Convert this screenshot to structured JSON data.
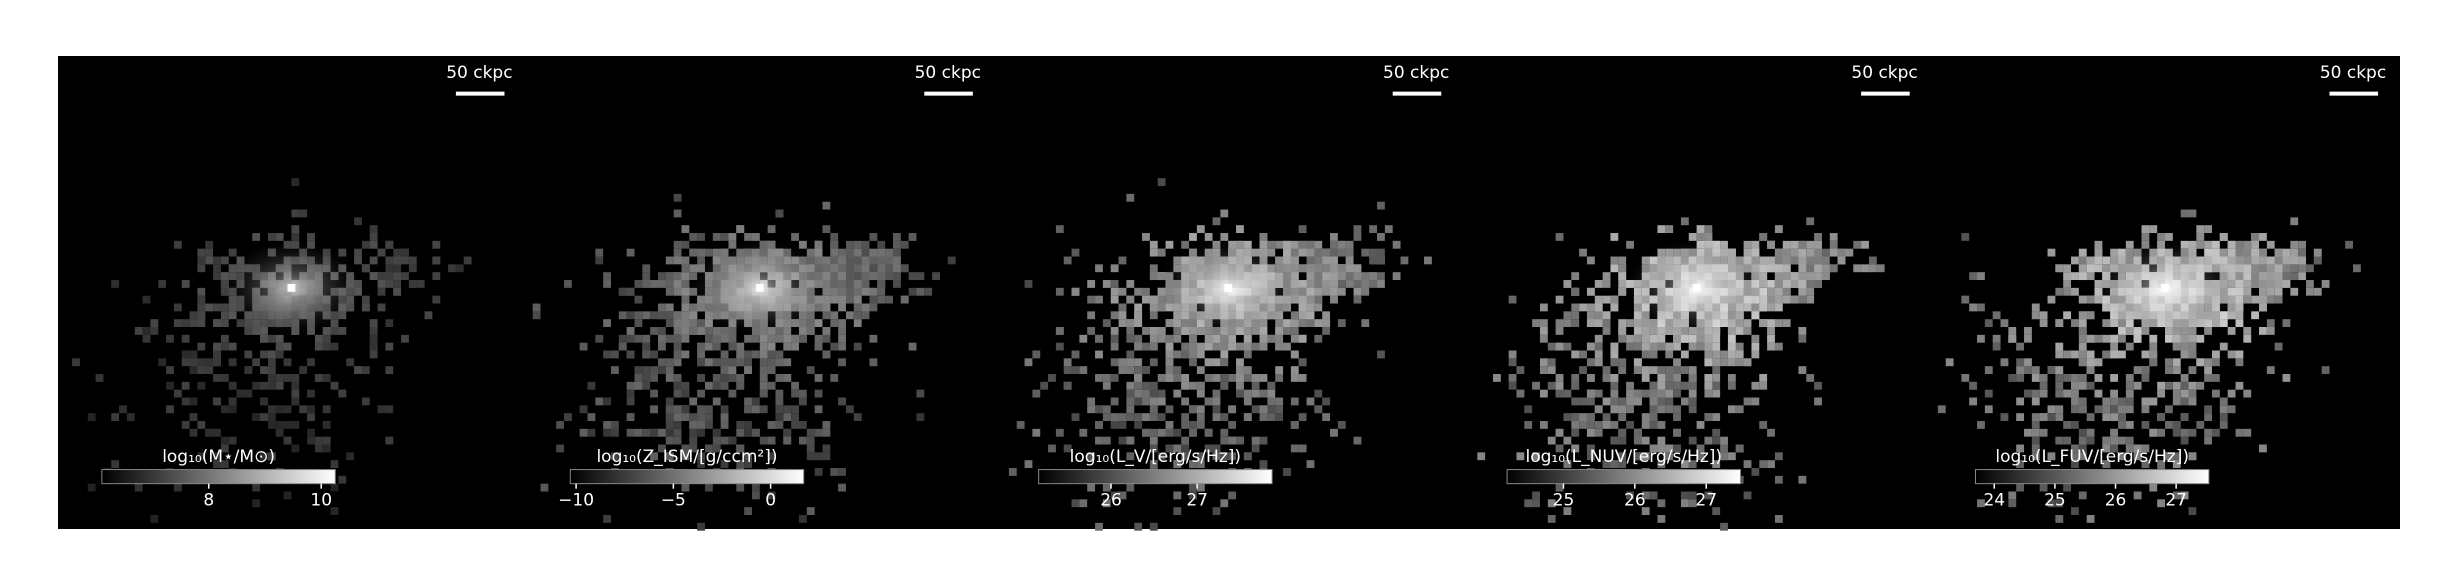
{
  "panels": [
    {
      "scale_label": "50 ckpc",
      "colorbar": {
        "label": "log₁₀(M⋆/M⊙)",
        "lim": [
          6.1,
          10.25
        ],
        "ticks": [
          8,
          10
        ]
      }
    },
    {
      "scale_label": "50 ckpc",
      "colorbar": {
        "label": "log₁₀(Z_ISM/[g/ccm²])",
        "lim": [
          -10.3,
          1.7
        ],
        "ticks": [
          {
            "value": -10,
            "label": "−10"
          },
          {
            "value": -5,
            "label": "−5"
          },
          0
        ]
      }
    },
    {
      "scale_label": "50 ckpc",
      "colorbar": {
        "label": "log₁₀(L_V/[erg/s/Hz])",
        "lim": [
          25.16,
          27.87
        ],
        "ticks": [
          26,
          27
        ]
      }
    },
    {
      "scale_label": "50 ckpc",
      "colorbar": {
        "label": "log₁₀(L_NUV/[erg/s/Hz])",
        "lim": [
          24.21,
          27.48
        ],
        "ticks": [
          25,
          26,
          27
        ]
      }
    },
    {
      "scale_label": "50 ckpc",
      "colorbar": {
        "label": "log₁₀(L_FUV/[erg/s/Hz])",
        "lim": [
          23.69,
          27.54
        ],
        "ticks": [
          24,
          25,
          26,
          27
        ]
      }
    }
  ]
}
